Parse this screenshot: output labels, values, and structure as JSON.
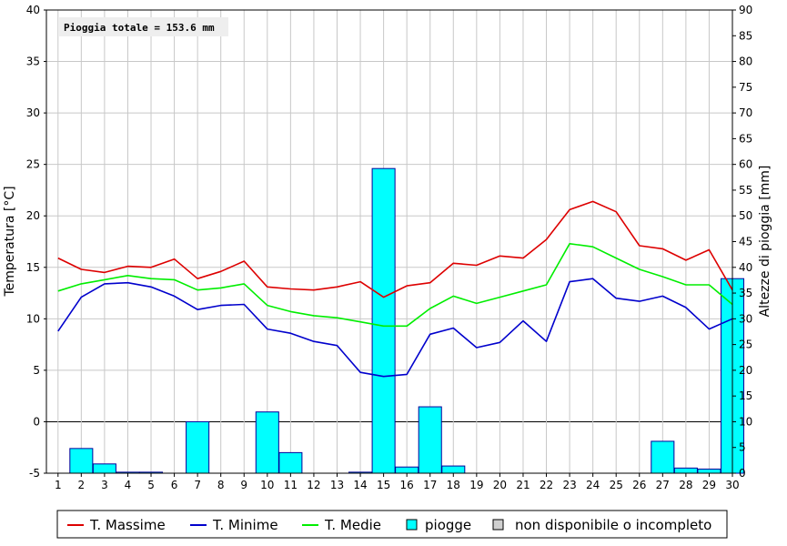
{
  "chart_data": {
    "type": "bar+line",
    "annotation": "Pioggia totale = 153.6 mm",
    "y_left_label": "Temperatura [°C]",
    "y_right_label": "Altezze di pioggia [mm]",
    "y_left_lim": [
      -5,
      40
    ],
    "y_left_ticks": [
      "-5",
      "0",
      "5",
      "10",
      "15",
      "20",
      "25",
      "30",
      "35",
      "40"
    ],
    "y_right_lim": [
      0,
      90
    ],
    "y_right_ticks": [
      "0",
      "5",
      "10",
      "15",
      "20",
      "25",
      "30",
      "35",
      "40",
      "45",
      "50",
      "55",
      "60",
      "65",
      "70",
      "75",
      "80",
      "85",
      "90"
    ],
    "x": [
      "1",
      "2",
      "3",
      "4",
      "5",
      "6",
      "7",
      "8",
      "9",
      "10",
      "11",
      "12",
      "13",
      "14",
      "15",
      "16",
      "17",
      "18",
      "19",
      "20",
      "21",
      "22",
      "23",
      "24",
      "25",
      "26",
      "27",
      "28",
      "29",
      "30"
    ],
    "grid": true,
    "legend_position": "bottom",
    "colors": {
      "max": "#dd0000",
      "min": "#0000cc",
      "mean": "#00ee00",
      "rain_fill": "#00ffff",
      "rain_stroke": "#000099",
      "na_fill": "#d0d0d0"
    },
    "series": [
      {
        "name": "T. Massime",
        "type": "line",
        "values": [
          15.9,
          14.8,
          14.5,
          15.1,
          15.0,
          15.8,
          13.9,
          14.6,
          15.6,
          13.1,
          12.9,
          12.8,
          13.1,
          13.6,
          12.1,
          13.2,
          13.5,
          15.4,
          15.2,
          16.1,
          15.9,
          17.7,
          20.6,
          21.4,
          20.4,
          17.1,
          16.8,
          15.7,
          16.7,
          12.8
        ]
      },
      {
        "name": "T. Minime",
        "type": "line",
        "values": [
          8.8,
          12.1,
          13.4,
          13.5,
          13.1,
          12.2,
          10.9,
          11.3,
          11.4,
          9.0,
          8.6,
          7.8,
          7.4,
          4.8,
          4.4,
          4.6,
          8.5,
          9.1,
          7.2,
          7.7,
          9.8,
          7.8,
          13.6,
          13.9,
          12.0,
          11.7,
          12.2,
          11.1,
          9.0,
          10.0
        ]
      },
      {
        "name": "T. Medie",
        "type": "line",
        "values": [
          12.7,
          13.4,
          13.8,
          14.2,
          13.9,
          13.8,
          12.8,
          13.0,
          13.4,
          11.3,
          10.7,
          10.3,
          10.1,
          9.7,
          9.3,
          9.3,
          11.0,
          12.2,
          11.5,
          12.1,
          12.7,
          13.3,
          17.3,
          17.0,
          15.9,
          14.8,
          14.1,
          13.3,
          13.3,
          11.4
        ]
      },
      {
        "name": "piogge",
        "type": "bar",
        "values": [
          0,
          4.8,
          1.8,
          0.2,
          0.2,
          0,
          10.0,
          0,
          0,
          11.9,
          4.0,
          0,
          0,
          0.2,
          59.2,
          1.2,
          12.9,
          1.4,
          0,
          0,
          0,
          0,
          0,
          0,
          0,
          0,
          6.2,
          1.0,
          0.8,
          37.8
        ]
      }
    ],
    "legend": [
      "T. Massime",
      "T. Minime",
      "T. Medie",
      "piogge",
      "non disponibile o incompleto"
    ]
  }
}
